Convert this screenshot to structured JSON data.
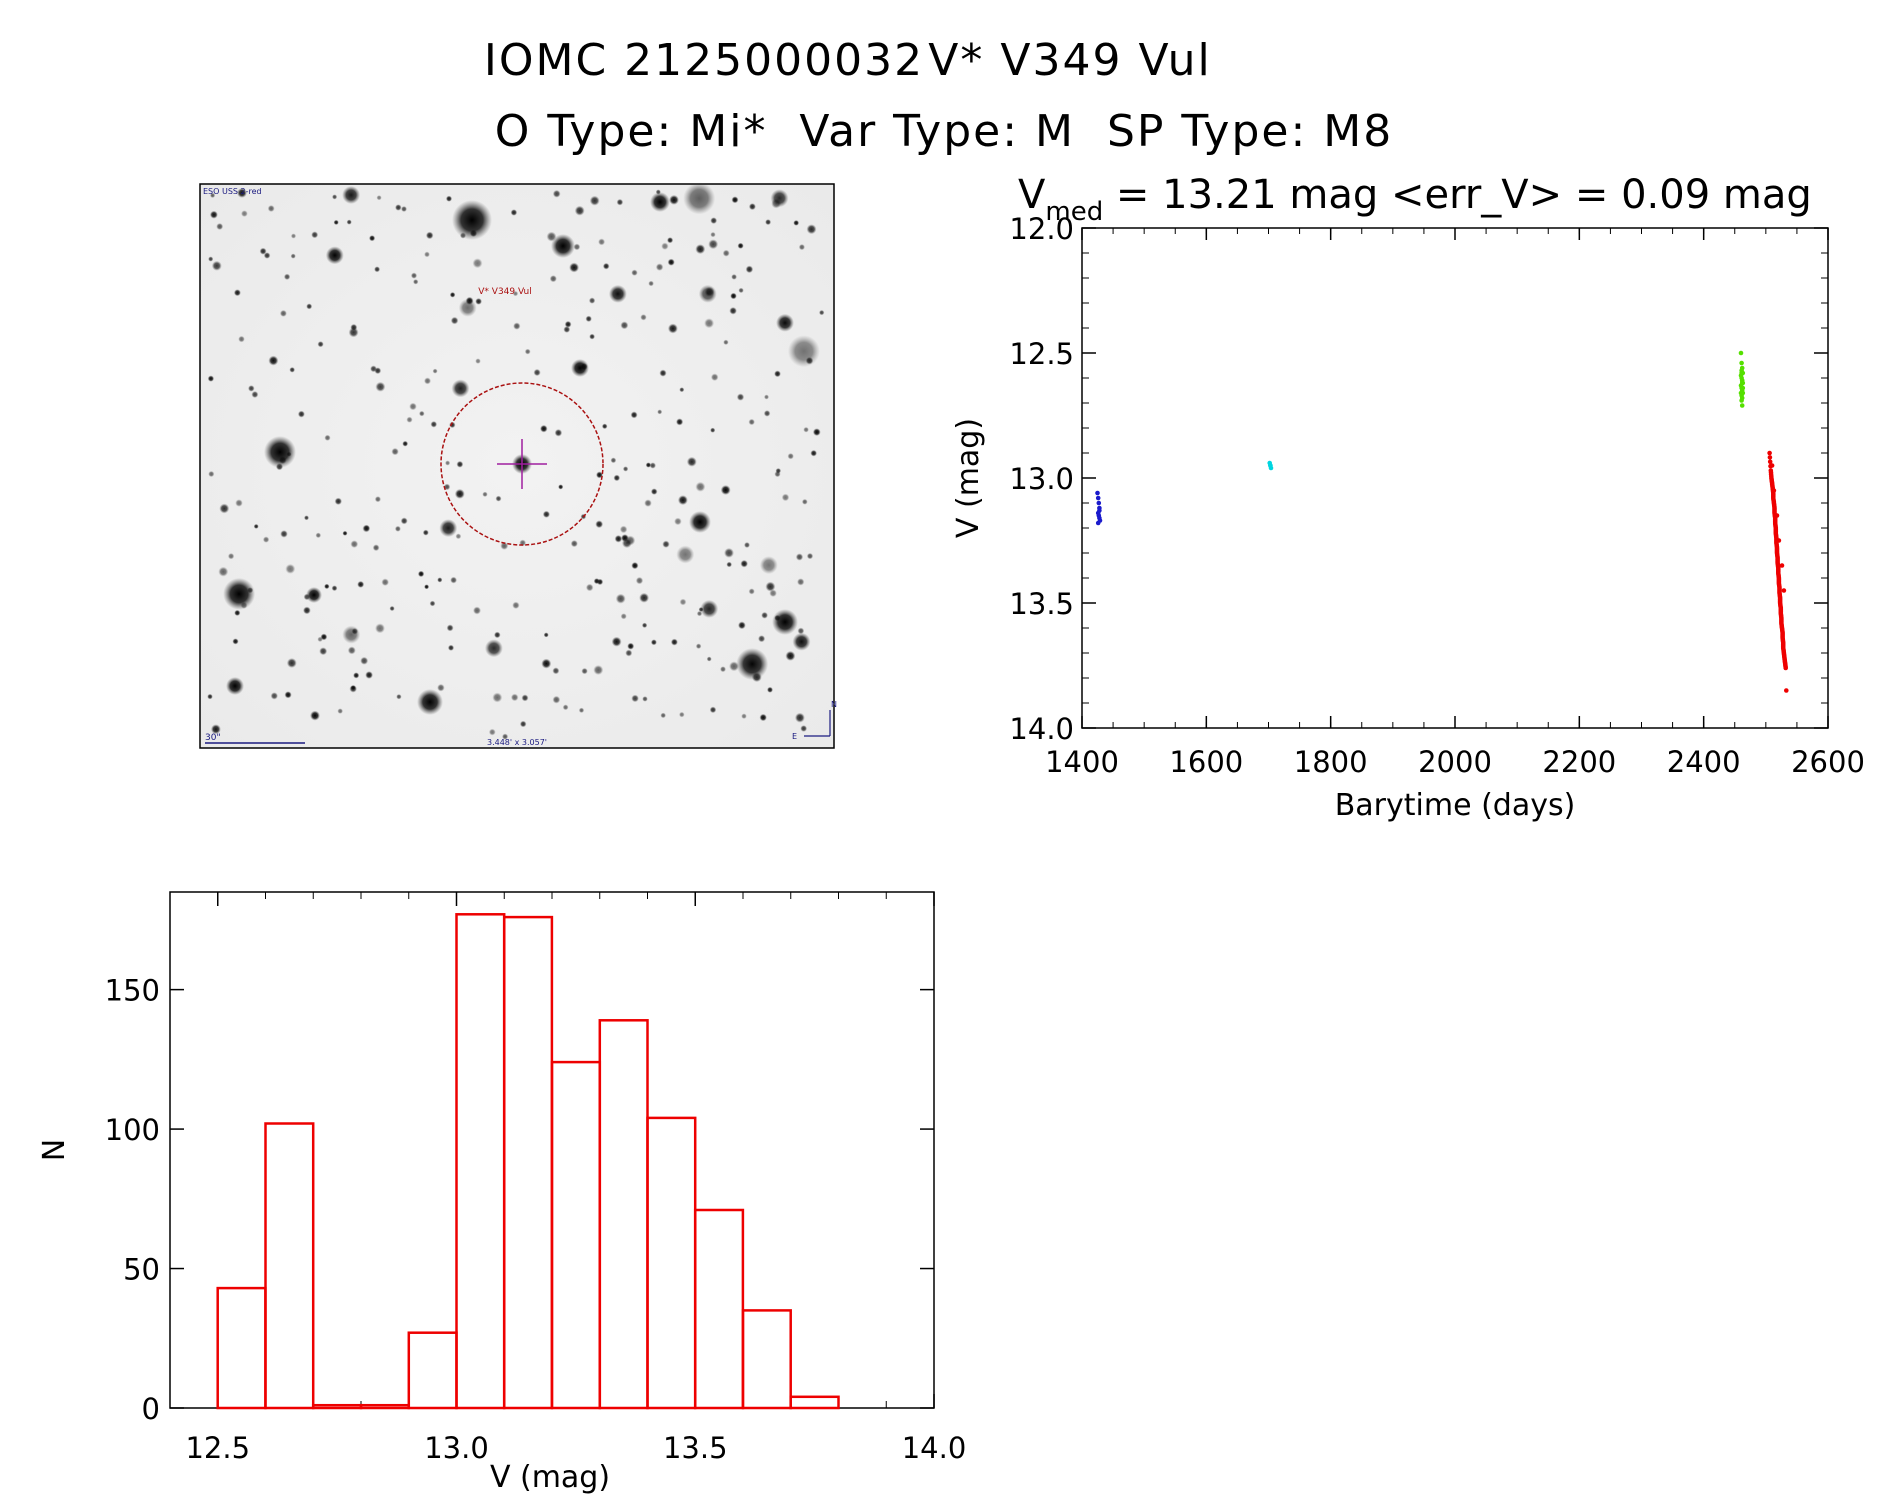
{
  "header": {
    "line1_id": "IOMC 2125000032",
    "line1_name": "V* V349 Vul",
    "line2": "O Type: Mi*  Var Type: M  SP Type: M8"
  },
  "image_panel": {
    "survey_label": "ESO USS 2-red",
    "target_label": "V* V349 Vul",
    "scale_label": "30\"",
    "fov_label": "3.448' x 3.057'",
    "compass_north": "N",
    "compass_east": "E"
  },
  "chart_data": [
    {
      "type": "scatter",
      "title": "V_med = 13.21 mag <err_V> = 0.09 mag",
      "title_parts": {
        "main": "V",
        "sub": "med",
        "rest": " = 13.21 mag <err_V> = 0.09 mag"
      },
      "xlabel": "Barytime (days)",
      "ylabel": "V (mag)",
      "xlim": [
        1400,
        2600
      ],
      "ylim": [
        12.0,
        14.0
      ],
      "y_inverted": true,
      "xticks": [
        1400,
        1600,
        1800,
        2000,
        2200,
        2400,
        2600
      ],
      "yticks": [
        "12.0",
        "12.5",
        "13.0",
        "13.5",
        "14.0"
      ],
      "grid": false,
      "series": [
        {
          "color": "#1a1acc",
          "x": [
            1425,
            1426,
            1427,
            1428,
            1426,
            1427,
            1428,
            1429,
            1426,
            1428
          ],
          "y": [
            13.06,
            13.08,
            13.1,
            13.12,
            13.14,
            13.15,
            13.16,
            13.17,
            13.18,
            13.13
          ]
        },
        {
          "color": "#00d5e0",
          "x": [
            1702,
            1703,
            1704,
            1703
          ],
          "y": [
            12.94,
            12.95,
            12.96,
            12.95
          ]
        },
        {
          "color": "#55e000",
          "x": [
            2460,
            2461,
            2462,
            2463,
            2460,
            2461,
            2462,
            2463,
            2460,
            2461,
            2462,
            2463,
            2461,
            2462,
            2461,
            2462,
            2460,
            2463,
            2461,
            2462,
            2461,
            2462
          ],
          "y": [
            12.5,
            12.54,
            12.56,
            12.58,
            12.59,
            12.6,
            12.61,
            12.62,
            12.63,
            12.64,
            12.65,
            12.66,
            12.67,
            12.68,
            12.58,
            12.62,
            12.66,
            12.64,
            12.69,
            12.71,
            12.57,
            12.61
          ]
        },
        {
          "color": "#ee0000",
          "x": [
            2506,
            2508,
            2509,
            2510,
            2511,
            2512,
            2512,
            2513,
            2514,
            2514,
            2515,
            2515,
            2516,
            2516,
            2517,
            2517,
            2518,
            2518,
            2519,
            2519,
            2520,
            2520,
            2521,
            2521,
            2522,
            2522,
            2523,
            2523,
            2524,
            2524,
            2525,
            2525,
            2526,
            2527,
            2527,
            2528,
            2528,
            2529,
            2530,
            2531,
            2532,
            2529,
            2526,
            2521,
            2518,
            2513,
            2510,
            2533
          ],
          "y": [
            12.9,
            12.97,
            13.0,
            13.02,
            13.04,
            13.06,
            13.08,
            13.1,
            13.12,
            13.14,
            13.16,
            13.18,
            13.2,
            13.22,
            13.24,
            13.26,
            13.28,
            13.3,
            13.32,
            13.34,
            13.36,
            13.38,
            13.4,
            13.42,
            13.44,
            13.46,
            13.48,
            13.5,
            13.52,
            13.54,
            13.56,
            13.58,
            13.6,
            13.62,
            13.64,
            13.66,
            13.68,
            13.7,
            13.72,
            13.74,
            13.76,
            13.45,
            13.35,
            13.25,
            13.15,
            13.05,
            12.95,
            13.85
          ]
        }
      ]
    },
    {
      "type": "bar",
      "style": "histogram-outline",
      "color": "#ee0000",
      "xlabel": "V (mag)",
      "ylabel": "N",
      "xlim": [
        12.4,
        14.0
      ],
      "ylim": [
        0,
        185
      ],
      "xticks": [
        "12.5",
        "13.0",
        "13.5",
        "14.0"
      ],
      "yticks": [
        "0",
        "50",
        "100",
        "150"
      ],
      "bin_edges": [
        12.5,
        12.6,
        12.7,
        12.8,
        12.9,
        13.0,
        13.1,
        13.2,
        13.3,
        13.4,
        13.5,
        13.6,
        13.7,
        13.8
      ],
      "values": [
        43,
        102,
        1,
        1,
        27,
        177,
        176,
        124,
        139,
        104,
        71,
        35,
        4
      ]
    }
  ]
}
